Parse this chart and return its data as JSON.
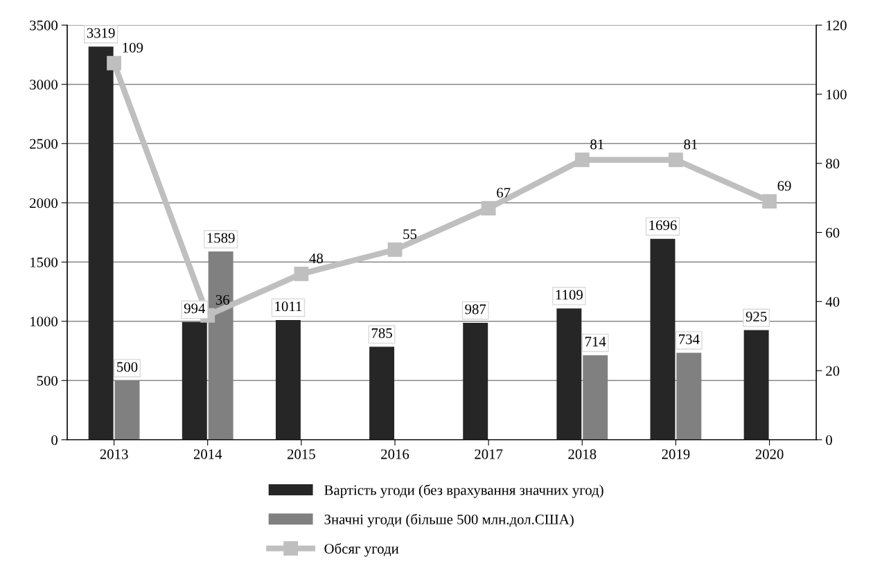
{
  "chart_data": {
    "type": "bar",
    "categories": [
      "2013",
      "2014",
      "2015",
      "2016",
      "2017",
      "2018",
      "2019",
      "2020"
    ],
    "series": [
      {
        "name": "Вартість угоди (без врахування значних угод)",
        "color": "#262626",
        "values": [
          3319,
          994,
          1011,
          785,
          987,
          1109,
          1696,
          925
        ]
      },
      {
        "name": "Значні угоди (більше 500 млн.дол.США)",
        "color": "#808080",
        "values": [
          500,
          1589,
          null,
          null,
          null,
          714,
          734,
          null
        ]
      },
      {
        "name": "Обсяг угоди",
        "type": "line",
        "axis": "y2",
        "color": "#bfbfbf",
        "marker": "square",
        "values": [
          109,
          36,
          48,
          55,
          67,
          81,
          81,
          69
        ]
      }
    ],
    "ylim": [
      0,
      3500
    ],
    "yticks": [
      0,
      500,
      1000,
      1500,
      2000,
      2500,
      3000,
      3500
    ],
    "y2lim": [
      0,
      120
    ],
    "y2ticks": [
      0,
      20,
      40,
      60,
      80,
      100,
      120
    ],
    "grid": "y",
    "legend": "bottom",
    "data_labels": true
  }
}
